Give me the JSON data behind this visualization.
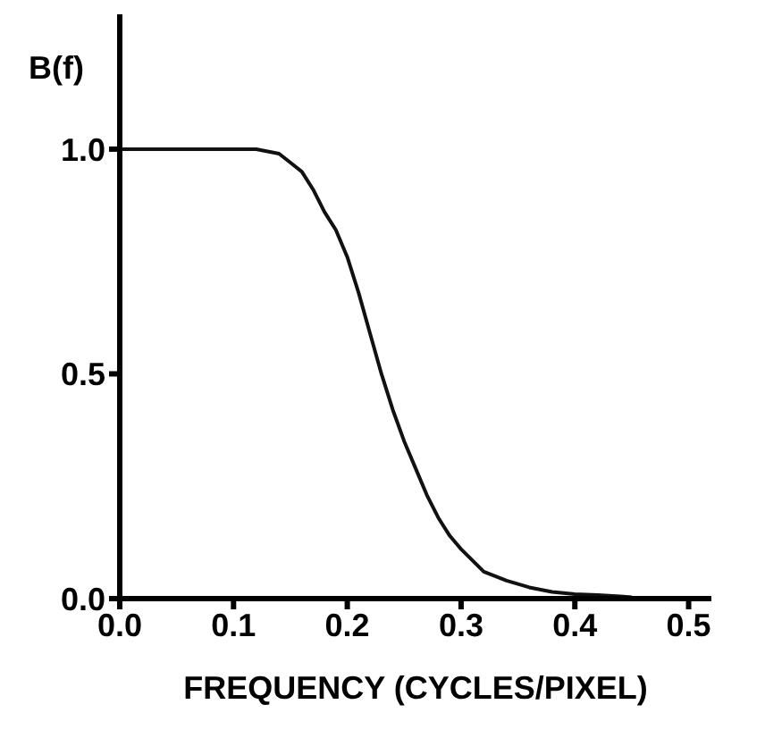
{
  "chart_data": {
    "type": "line",
    "xlabel": "FREQUENCY (CYCLES/PIXEL)",
    "ylabel": "B(f)",
    "x": [
      0,
      0.05,
      0.1,
      0.12,
      0.14,
      0.15,
      0.16,
      0.17,
      0.18,
      0.19,
      0.2,
      0.21,
      0.22,
      0.23,
      0.24,
      0.25,
      0.26,
      0.27,
      0.28,
      0.29,
      0.3,
      0.32,
      0.34,
      0.36,
      0.38,
      0.4,
      0.42,
      0.44,
      0.45
    ],
    "series": [
      {
        "color": "#111111",
        "values": [
          1,
          1,
          1,
          1,
          0.99,
          0.97,
          0.95,
          0.91,
          0.86,
          0.82,
          0.76,
          0.68,
          0.59,
          0.5,
          0.42,
          0.35,
          0.29,
          0.23,
          0.18,
          0.14,
          0.11,
          0.06,
          0.04,
          0.025,
          0.015,
          0.01,
          0.008,
          0.005,
          0.003
        ]
      }
    ],
    "xlim": [
      0,
      0.52
    ],
    "ylim": [
      0,
      1.3
    ],
    "xticks": [
      {
        "value": 0,
        "label": "0.0"
      },
      {
        "value": 0.1,
        "label": "0.1"
      },
      {
        "value": 0.2,
        "label": "0.2"
      },
      {
        "value": 0.3,
        "label": "0.3"
      },
      {
        "value": 0.4,
        "label": "0.4"
      },
      {
        "value": 0.5,
        "label": "0.5"
      }
    ],
    "yticks": [
      {
        "value": 0,
        "label": "0.0"
      },
      {
        "value": 0.5,
        "label": "0.5"
      },
      {
        "value": 1,
        "label": "1.0"
      }
    ],
    "grid": false,
    "legend": false,
    "marker": "none",
    "line_style": "solid"
  }
}
